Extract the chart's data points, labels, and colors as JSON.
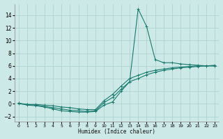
{
  "xlabel": "Humidex (Indice chaleur)",
  "bg_color": "#cce9e7",
  "grid_color": "#aacfcc",
  "line_color": "#1a7a6e",
  "xlim": [
    -0.5,
    23.5
  ],
  "ylim": [
    -2.8,
    15.8
  ],
  "yticks": [
    -2,
    0,
    2,
    4,
    6,
    8,
    10,
    12,
    14
  ],
  "xticks": [
    0,
    1,
    2,
    3,
    4,
    5,
    6,
    7,
    8,
    9,
    10,
    11,
    12,
    13,
    14,
    15,
    16,
    17,
    18,
    19,
    20,
    21,
    22,
    23
  ],
  "series": [
    {
      "x": [
        0,
        1,
        2,
        3,
        4,
        5,
        6,
        7,
        8,
        9,
        10,
        11,
        12,
        13,
        14,
        15,
        16,
        17,
        18,
        19,
        20,
        21,
        22,
        23
      ],
      "y": [
        0.1,
        -0.2,
        -0.3,
        -0.5,
        -0.8,
        -1.1,
        -1.2,
        -1.3,
        -1.3,
        -1.2,
        -0.2,
        0.3,
        2.0,
        3.5,
        15.0,
        12.2,
        7.0,
        6.5,
        6.5,
        6.3,
        6.2,
        6.1,
        6.0,
        6.0
      ]
    },
    {
      "x": [
        0,
        1,
        2,
        3,
        4,
        5,
        6,
        7,
        8,
        9,
        10,
        11,
        12,
        13,
        14,
        15,
        16,
        17,
        18,
        19,
        20,
        21,
        22,
        23
      ],
      "y": [
        0.1,
        -0.1,
        -0.1,
        -0.2,
        -0.3,
        -0.5,
        -0.6,
        -0.8,
        -0.9,
        -0.9,
        0.5,
        1.5,
        2.8,
        4.0,
        4.5,
        5.0,
        5.3,
        5.5,
        5.7,
        5.8,
        5.9,
        6.0,
        6.0,
        6.1
      ]
    },
    {
      "x": [
        0,
        1,
        2,
        3,
        4,
        5,
        6,
        7,
        8,
        9,
        10,
        11,
        12,
        13,
        14,
        15,
        16,
        17,
        18,
        19,
        20,
        21,
        22,
        23
      ],
      "y": [
        0.0,
        -0.1,
        -0.2,
        -0.4,
        -0.6,
        -0.8,
        -1.0,
        -1.1,
        -1.2,
        -1.1,
        0.2,
        1.0,
        2.3,
        3.5,
        4.0,
        4.6,
        5.0,
        5.3,
        5.5,
        5.7,
        5.8,
        5.9,
        6.0,
        6.0
      ]
    }
  ]
}
